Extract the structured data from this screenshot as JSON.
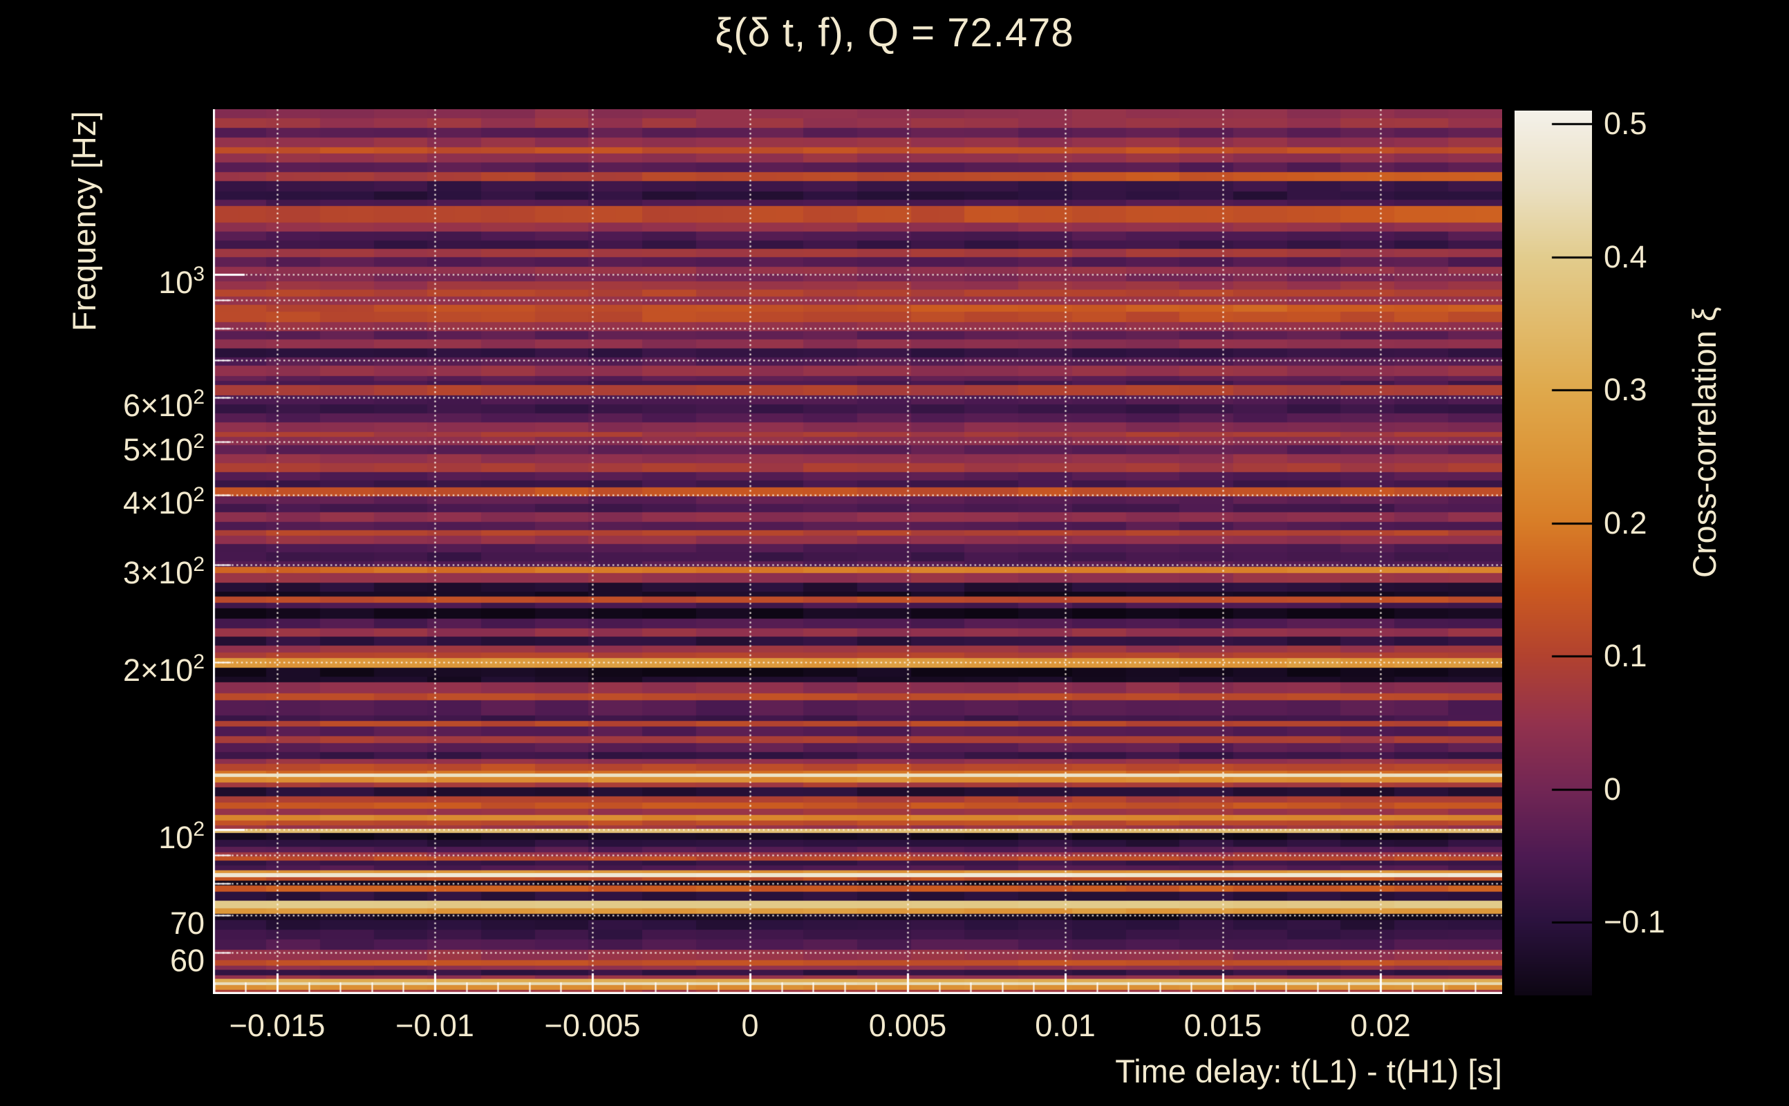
{
  "title": "ξ(δ t, f), Q = 72.478",
  "colors": {
    "background": "#000000",
    "text": "#f2e9ce",
    "frame": "#ffffff",
    "grid": "#fff8ea",
    "colorbar_tick": "#000000"
  },
  "chart_data": {
    "type": "heatmap",
    "title": "ξ(δ t, f), Q = 72.478",
    "xlabel": "Time delay: t(L1) - t(H1) [s]",
    "ylabel": "Frequency [Hz]",
    "colorbar_label": "Cross-correlation ξ",
    "x_range_s": [
      -0.01704,
      0.02386
    ],
    "y_range_hz": [
      50.5,
      1984
    ],
    "y_scale": "log",
    "grid": "dotted",
    "x_ticks": [
      -0.015,
      -0.01,
      -0.005,
      0,
      0.005,
      0.01,
      0.015,
      0.02
    ],
    "x_tick_labels": [
      "−0.015",
      "−0.01",
      "−0.005",
      "0",
      "0.005",
      "0.01",
      "0.015",
      "0.02"
    ],
    "x_minor_step": 0.001,
    "y_ticks": [
      {
        "v": 1000,
        "base": "10",
        "sup": "3"
      },
      {
        "v": 600,
        "base": "6×10",
        "sup": "2"
      },
      {
        "v": 500,
        "base": "5×10",
        "sup": "2"
      },
      {
        "v": 400,
        "base": "4×10",
        "sup": "2"
      },
      {
        "v": 300,
        "base": "3×10",
        "sup": "2"
      },
      {
        "v": 200,
        "base": "2×10",
        "sup": "2"
      },
      {
        "v": 100,
        "base": "10",
        "sup": "2"
      },
      {
        "v": 70,
        "base": "70",
        "sup": ""
      },
      {
        "v": 60,
        "base": "60",
        "sup": ""
      }
    ],
    "y_gridlines_hz": [
      60,
      70,
      80,
      90,
      100,
      200,
      300,
      400,
      500,
      600,
      700,
      800,
      900,
      1000
    ],
    "colorbar": {
      "vmin": -0.155,
      "vmax": 0.51,
      "ticks": [
        0.5,
        0.4,
        0.3,
        0.2,
        0.1,
        0,
        -0.1
      ],
      "tick_labels": [
        "0.5",
        "0.4",
        "0.3",
        "0.2",
        "0.1",
        "0",
        "−0.1"
      ]
    },
    "colormap_stops": [
      [
        -0.155,
        "#0d0613"
      ],
      [
        -0.1,
        "#2b123e"
      ],
      [
        -0.05,
        "#4d1a52"
      ],
      [
        0.0,
        "#722654"
      ],
      [
        0.05,
        "#93324d"
      ],
      [
        0.1,
        "#b2422f"
      ],
      [
        0.15,
        "#cb5a20"
      ],
      [
        0.2,
        "#d87d27"
      ],
      [
        0.25,
        "#dc9538"
      ],
      [
        0.3,
        "#dfa94c"
      ],
      [
        0.35,
        "#e1bb6c"
      ],
      [
        0.4,
        "#e2cc8d"
      ],
      [
        0.45,
        "#eadfc0"
      ],
      [
        0.51,
        "#f4f1ea"
      ]
    ],
    "rows_note": "each row = [frequency at top edge of band in Hz, cross-correlation xi, optional left-to-right xi gradient]; bands extend down to next row's frequency, last to 50.5 Hz",
    "rows": [
      [
        1984,
        0.04
      ],
      [
        1906,
        0.06
      ],
      [
        1831,
        -0.03
      ],
      [
        1759,
        0.05
      ],
      [
        1690,
        0.13
      ],
      [
        1651,
        0.05
      ],
      [
        1587,
        -0.04
      ],
      [
        1524,
        0.12,
        0.05
      ],
      [
        1472,
        -0.08
      ],
      [
        1410,
        -0.1
      ],
      [
        1359,
        -0.05
      ],
      [
        1327,
        0.12,
        0.03
      ],
      [
        1238,
        0.05
      ],
      [
        1194,
        -0.05
      ],
      [
        1150,
        -0.08
      ],
      [
        1110,
        0.07
      ],
      [
        1071,
        -0.04
      ],
      [
        1029,
        0.05
      ],
      [
        1000,
        0.01
      ],
      [
        969,
        0.06
      ],
      [
        936,
        0.1
      ],
      [
        911,
        0.05
      ],
      [
        880,
        0.14,
        0.03
      ],
      [
        855,
        0.12
      ],
      [
        820,
        0.05
      ],
      [
        790,
        -0.03
      ],
      [
        762,
        0.04
      ],
      [
        734,
        -0.09
      ],
      [
        707,
        -0.04
      ],
      [
        683,
        0.05
      ],
      [
        654,
        -0.03
      ],
      [
        641,
        -0.06
      ],
      [
        630,
        0.09
      ],
      [
        604,
        -0.05
      ],
      [
        583,
        -0.08
      ],
      [
        561,
        -0.04
      ],
      [
        540,
        0.03
      ],
      [
        519,
        0.08
      ],
      [
        509,
        0.04
      ],
      [
        491,
        -0.03
      ],
      [
        473,
        0.05
      ],
      [
        456,
        0.08
      ],
      [
        439,
        -0.04
      ],
      [
        425,
        -0.07
      ],
      [
        413,
        0.13
      ],
      [
        398,
        -0.03
      ],
      [
        385,
        -0.06
      ],
      [
        372,
        0.04
      ],
      [
        358,
        -0.04
      ],
      [
        345,
        0.1
      ],
      [
        338,
        0.05
      ],
      [
        326,
        -0.05
      ],
      [
        315,
        -0.07
      ],
      [
        304,
        -0.04
      ],
      [
        297,
        0.2,
        0.03
      ],
      [
        289,
        0.05
      ],
      [
        278,
        -0.11
      ],
      [
        268,
        -0.135
      ],
      [
        262,
        0.12
      ],
      [
        256,
        -0.06
      ],
      [
        250,
        -0.145
      ],
      [
        239,
        -0.05
      ],
      [
        230,
        0.05
      ],
      [
        222,
        -0.1
      ],
      [
        214,
        0.06
      ],
      [
        208,
        0.1
      ],
      [
        203,
        0.26
      ],
      [
        195,
        -0.145
      ],
      [
        188,
        -0.13
      ],
      [
        184,
        0.04
      ],
      [
        175.6,
        0.12
      ],
      [
        170.6,
        -0.04
      ],
      [
        160.4,
        -0.07
      ],
      [
        156.7,
        0.11
      ],
      [
        153.2,
        -0.04
      ],
      [
        147.1,
        0.08
      ],
      [
        142.9,
        -0.03
      ],
      [
        137.6,
        -0.08
      ],
      [
        133.7,
        0.05
      ],
      [
        131.0,
        0.12
      ],
      [
        127.3,
        0.18
      ],
      [
        125.9,
        0.46
      ],
      [
        124.1,
        0.24
      ],
      [
        121.3,
        0.08
      ],
      [
        118.9,
        -0.11
      ],
      [
        114.6,
        0.09
      ],
      [
        111.7,
        0.14
      ],
      [
        108.8,
        0.06
      ],
      [
        106.0,
        0.22
      ],
      [
        103.6,
        0.12
      ],
      [
        101.5,
        0.06
      ],
      [
        100.1,
        0.36
      ],
      [
        98.3,
        -0.145
      ],
      [
        95.6,
        -0.1
      ],
      [
        92.9,
        -0.04
      ],
      [
        90.8,
        0.06
      ],
      [
        89.2,
        0.12
      ],
      [
        87.7,
        -0.08
      ],
      [
        85.9,
        -0.05
      ],
      [
        84.2,
        0.25
      ],
      [
        83.2,
        0.48
      ],
      [
        81.9,
        0.13
      ],
      [
        80.7,
        -0.13
      ],
      [
        79.0,
        0.15
      ],
      [
        77.2,
        -0.1
      ],
      [
        74.3,
        0.39
      ],
      [
        71.9,
        0.26
      ],
      [
        70.4,
        -0.14
      ],
      [
        68.6,
        -0.1
      ],
      [
        65.8,
        -0.08
      ],
      [
        63.2,
        -0.05
      ],
      [
        60.6,
        0.05
      ],
      [
        58.1,
        0.13
      ],
      [
        56.8,
        0.04
      ],
      [
        55.8,
        -0.09
      ],
      [
        54.5,
        0.05
      ],
      [
        53.7,
        0.31
      ],
      [
        53.0,
        0.44
      ],
      [
        52.3,
        0.24
      ],
      [
        51.3,
        0.07
      ]
    ]
  }
}
